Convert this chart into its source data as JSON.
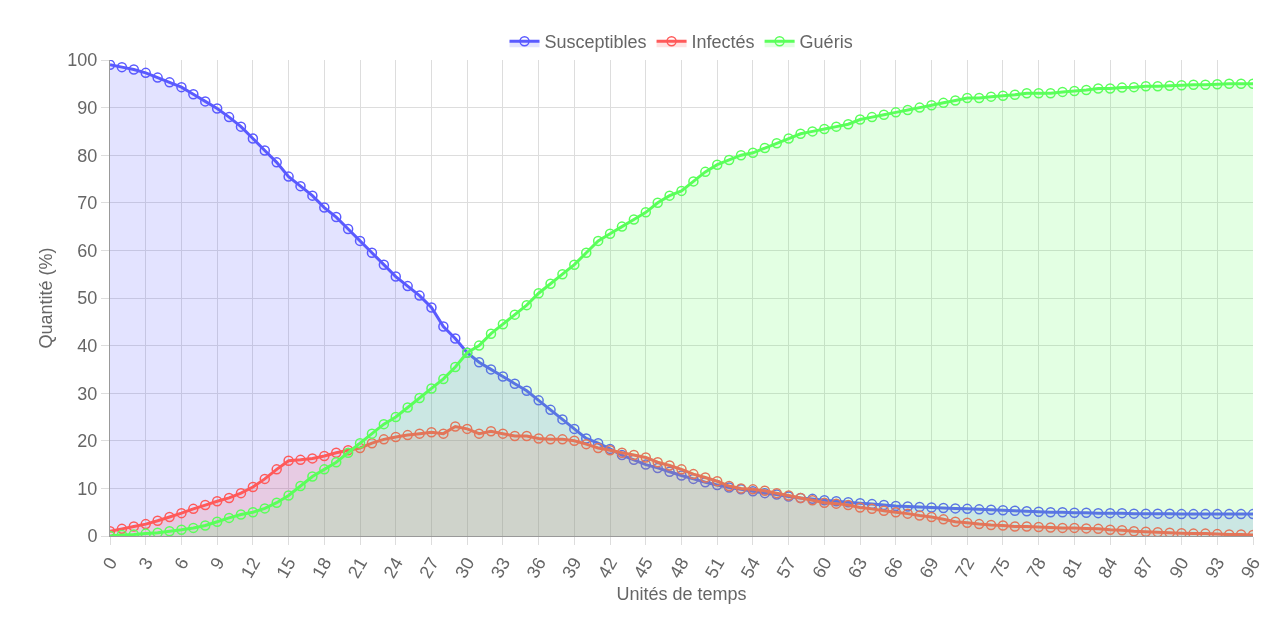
{
  "chart_data": {
    "type": "area",
    "xlabel": "Unités de temps",
    "ylabel": "Quantité (%)",
    "legend": "top",
    "grid": true,
    "marker": "circle",
    "line_style": "solid",
    "x": [
      0,
      1,
      2,
      3,
      4,
      5,
      6,
      7,
      8,
      9,
      10,
      11,
      12,
      13,
      14,
      15,
      16,
      17,
      18,
      19,
      20,
      21,
      22,
      23,
      24,
      25,
      26,
      27,
      28,
      29,
      30,
      31,
      32,
      33,
      34,
      35,
      36,
      37,
      38,
      39,
      40,
      41,
      42,
      43,
      44,
      45,
      46,
      47,
      48,
      49,
      50,
      51,
      52,
      53,
      54,
      55,
      56,
      57,
      58,
      59,
      60,
      61,
      62,
      63,
      64,
      65,
      66,
      67,
      68,
      69,
      70,
      71,
      72,
      73,
      74,
      75,
      76,
      77,
      78,
      79,
      80,
      81,
      82,
      83,
      84,
      85,
      86,
      87,
      88,
      89,
      90,
      91,
      92,
      93,
      94,
      95,
      96
    ],
    "xlim": [
      0,
      96
    ],
    "xticks": [
      0,
      3,
      6,
      9,
      12,
      15,
      18,
      21,
      24,
      27,
      30,
      33,
      36,
      39,
      42,
      45,
      48,
      51,
      54,
      57,
      60,
      63,
      66,
      69,
      72,
      75,
      78,
      81,
      84,
      87,
      90,
      93,
      96
    ],
    "ylim": [
      0,
      100
    ],
    "yticks": [
      0,
      10,
      20,
      30,
      40,
      50,
      60,
      70,
      80,
      90,
      100
    ],
    "series": [
      {
        "name": "Susceptibles",
        "color": "#5a5aff",
        "values": [
          99,
          98.5,
          98,
          97.3,
          96.3,
          95.3,
          94.3,
          92.8,
          91.3,
          89.8,
          88,
          86,
          83.5,
          81,
          78.5,
          75.5,
          73.5,
          71.5,
          69,
          67,
          64.5,
          62,
          59.5,
          57,
          54.5,
          52.5,
          50.5,
          48,
          44,
          41.5,
          38.5,
          36.5,
          35,
          33.5,
          32,
          30.5,
          28.5,
          26.5,
          24.5,
          22.5,
          20.5,
          19.5,
          18.3,
          17,
          16,
          15,
          14.3,
          13.5,
          12.7,
          12,
          11.3,
          10.7,
          10.2,
          9.8,
          9.4,
          9,
          8.7,
          8.3,
          8,
          7.8,
          7.5,
          7.3,
          7.1,
          6.9,
          6.7,
          6.5,
          6.3,
          6.2,
          6.1,
          6,
          5.9,
          5.8,
          5.7,
          5.6,
          5.5,
          5.4,
          5.3,
          5.2,
          5.1,
          5,
          5,
          4.9,
          4.9,
          4.8,
          4.8,
          4.8,
          4.7,
          4.7,
          4.7,
          4.7,
          4.6,
          4.6,
          4.6,
          4.6,
          4.6,
          4.6,
          4.6
        ]
      },
      {
        "name": "Infectés",
        "color": "#ff5a5a",
        "values": [
          1,
          1.5,
          2,
          2.5,
          3.2,
          4,
          4.8,
          5.7,
          6.5,
          7.3,
          8,
          9,
          10.3,
          12,
          14,
          15.8,
          16,
          16.3,
          16.8,
          17.5,
          18,
          18.5,
          19.5,
          20.3,
          20.8,
          21.2,
          21.5,
          21.8,
          21.5,
          23,
          22.5,
          21.5,
          22,
          21.5,
          21,
          21,
          20.5,
          20.3,
          20.3,
          20,
          19.3,
          18.5,
          18,
          17.5,
          17,
          16.5,
          15.5,
          14.8,
          14,
          13,
          12.3,
          11.5,
          10.5,
          10,
          9.8,
          9.5,
          9,
          8.5,
          8,
          7.5,
          7,
          6.8,
          6.5,
          6,
          5.7,
          5.3,
          5,
          4.7,
          4.3,
          4,
          3.5,
          3,
          2.8,
          2.5,
          2.3,
          2.2,
          2,
          2,
          1.9,
          1.8,
          1.7,
          1.7,
          1.6,
          1.5,
          1.3,
          1.2,
          1,
          0.9,
          0.8,
          0.7,
          0.6,
          0.5,
          0.5,
          0.4,
          0.3,
          0.3,
          0.2
        ]
      },
      {
        "name": "Guéris",
        "color": "#5aff5a",
        "values": [
          0,
          0.2,
          0.3,
          0.5,
          0.7,
          1,
          1.3,
          1.7,
          2.2,
          3,
          3.8,
          4.5,
          5,
          5.8,
          7,
          8.5,
          10.5,
          12.5,
          14,
          15.5,
          17.5,
          19.5,
          21.5,
          23.5,
          25,
          27,
          29,
          31,
          33,
          35.5,
          38.5,
          40,
          42.5,
          44.5,
          46.5,
          48.5,
          51,
          53,
          55,
          57,
          59.5,
          62,
          63.5,
          65,
          66.5,
          68,
          70,
          71.5,
          72.5,
          74.5,
          76.5,
          78,
          79,
          80,
          80.5,
          81.5,
          82.5,
          83.5,
          84.5,
          85,
          85.5,
          86,
          86.5,
          87.5,
          88,
          88.5,
          89,
          89.5,
          90,
          90.5,
          91,
          91.5,
          92,
          92,
          92.3,
          92.5,
          92.7,
          93,
          93,
          93,
          93.3,
          93.5,
          93.7,
          94,
          94,
          94.2,
          94.3,
          94.5,
          94.5,
          94.6,
          94.7,
          94.8,
          94.8,
          94.9,
          95,
          95,
          95
        ]
      }
    ]
  }
}
